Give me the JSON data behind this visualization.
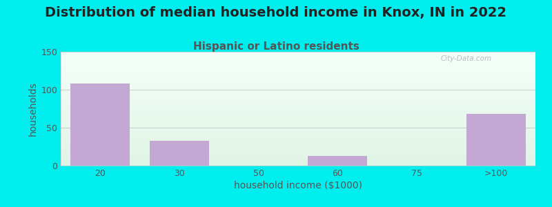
{
  "title": "Distribution of median household income in Knox, IN in 2022",
  "subtitle": "Hispanic or Latino residents",
  "xlabel": "household income ($1000)",
  "ylabel": "households",
  "categories": [
    "20",
    "30",
    "50",
    "60",
    "75",
    ">100"
  ],
  "values": [
    108,
    33,
    0,
    13,
    0,
    68
  ],
  "bar_color": "#c4a8d4",
  "background_color": "#00eeee",
  "plot_bg_top_left": "#e8f5e8",
  "plot_bg_top_right": "#f5ffff",
  "plot_bg_bottom": "#e0f0e8",
  "ylim": [
    0,
    150
  ],
  "yticks": [
    0,
    50,
    100,
    150
  ],
  "title_fontsize": 14,
  "subtitle_fontsize": 11,
  "axis_label_fontsize": 10,
  "tick_fontsize": 9,
  "label_color": "#555555",
  "subtitle_color": "#555555",
  "watermark": "City-Data.com"
}
